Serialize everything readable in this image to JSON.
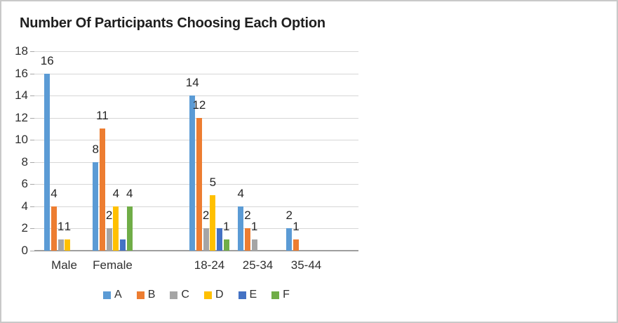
{
  "title": "Number Of Participants Choosing Each Option",
  "chart_data": {
    "type": "bar",
    "title": "Number Of Participants Choosing Each Option",
    "categories": [
      "Male",
      "Female",
      "",
      "18-24",
      "25-34",
      "35-44"
    ],
    "series": [
      {
        "name": "A",
        "color": "#5B9BD5",
        "values": [
          16,
          8,
          0,
          14,
          4,
          2
        ]
      },
      {
        "name": "B",
        "color": "#ED7D31",
        "values": [
          4,
          11,
          0,
          12,
          2,
          1
        ]
      },
      {
        "name": "C",
        "color": "#A5A5A5",
        "values": [
          1,
          2,
          0,
          2,
          1,
          0
        ]
      },
      {
        "name": "D",
        "color": "#FFC000",
        "values": [
          1,
          4,
          0,
          5,
          0,
          0
        ]
      },
      {
        "name": "E",
        "color": "#4472C4",
        "values": [
          0,
          1,
          0,
          2,
          0,
          0
        ]
      },
      {
        "name": "F",
        "color": "#70AD47",
        "values": [
          0,
          4,
          0,
          1,
          0,
          0
        ]
      }
    ],
    "data_labels_shown_for_nonzero": true,
    "hidden_data_labels": [
      {
        "series": "E",
        "category": "Female",
        "value": 1
      },
      {
        "series": "E",
        "category": "18-24",
        "value": 2
      }
    ],
    "y_axis": {
      "min": 0,
      "max": 18,
      "step": 2,
      "tick_labels": [
        "0",
        "2",
        "4",
        "6",
        "8",
        "10",
        "12",
        "14",
        "16",
        "18"
      ]
    },
    "x_axis_labels": [
      "Male",
      "Female",
      "",
      "18-24",
      "25-34",
      "35-44"
    ],
    "legend": {
      "position": "bottom",
      "entries": [
        "A",
        "B",
        "C",
        "D",
        "E",
        "F"
      ]
    },
    "grid": true,
    "style_colors": {
      "gridline": "#d6d6d6",
      "axis_line": "#9e9e9e",
      "text": "#303030",
      "title_text": "#1f1f1f"
    }
  }
}
